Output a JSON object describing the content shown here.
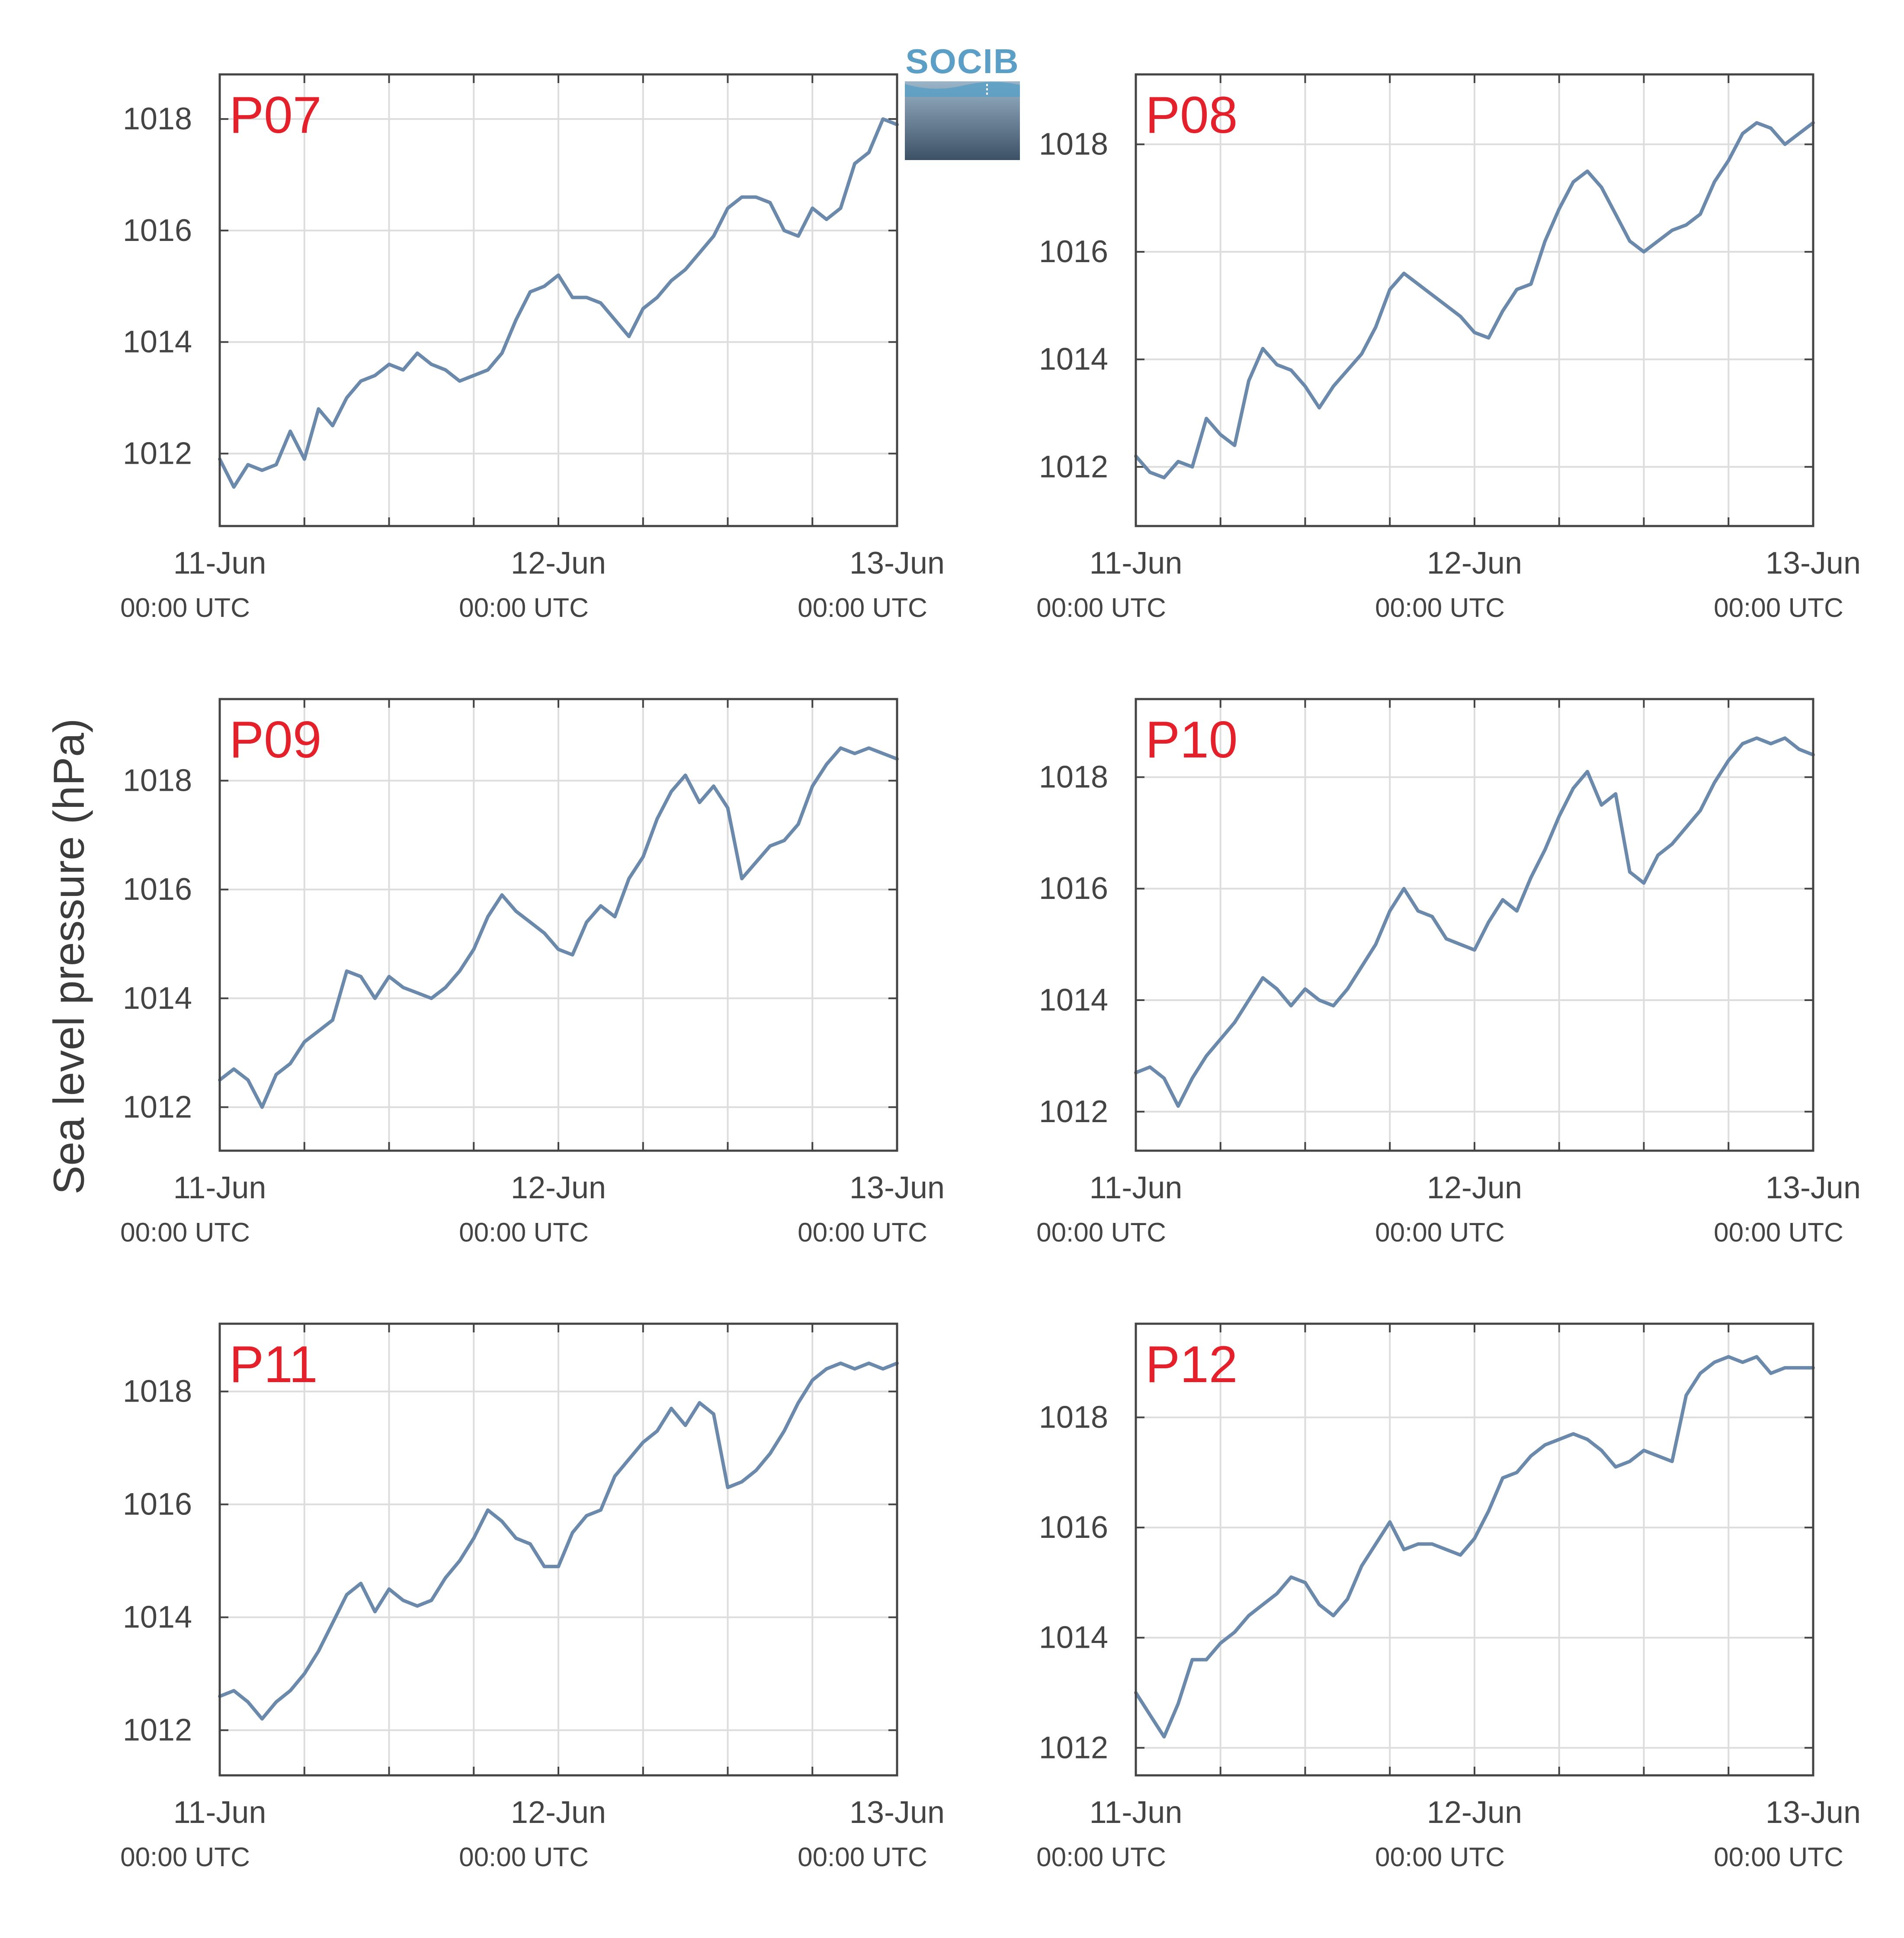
{
  "y_axis_label": "Sea level pressure (hPa)",
  "logo": {
    "text": "SOCIB"
  },
  "x_tick_labels": [
    {
      "date": "11-Jun",
      "time": "00:00 UTC"
    },
    {
      "date": "12-Jun",
      "time": "00:00 UTC"
    },
    {
      "date": "13-Jun",
      "time": "00:00 UTC"
    }
  ],
  "colors": {
    "line": "#6a89ab",
    "panel_label": "#e4202a",
    "grid": "#dddddd",
    "axis": "#444444",
    "text": "#444444"
  },
  "chart_data": [
    {
      "type": "line",
      "panel_label": "P07",
      "ylabel": "Sea level pressure (hPa)",
      "x_range": [
        "2024-06-11T00:00Z",
        "2024-06-13T00:00Z"
      ],
      "ylim": [
        1010.7,
        1018.8
      ],
      "y_ticks": [
        1012,
        1014,
        1016,
        1018
      ],
      "grid": true,
      "x_hours": [
        0,
        1,
        2,
        3,
        4,
        5,
        6,
        7,
        8,
        9,
        10,
        11,
        12,
        13,
        14,
        15,
        16,
        17,
        18,
        19,
        20,
        21,
        22,
        23,
        24,
        25,
        26,
        27,
        28,
        29,
        30,
        31,
        32,
        33,
        34,
        35,
        36,
        37,
        38,
        39,
        40,
        41,
        42,
        43,
        44,
        45,
        46,
        47,
        48
      ],
      "values": [
        1011.9,
        1011.4,
        1011.8,
        1011.7,
        1011.8,
        1012.4,
        1011.9,
        1012.8,
        1012.5,
        1013.0,
        1013.3,
        1013.4,
        1013.6,
        1013.5,
        1013.8,
        1013.6,
        1013.5,
        1013.3,
        1013.4,
        1013.5,
        1013.8,
        1014.4,
        1014.9,
        1015.0,
        1015.2,
        1014.8,
        1014.8,
        1014.7,
        1014.4,
        1014.1,
        1014.6,
        1014.8,
        1015.1,
        1015.3,
        1015.6,
        1015.9,
        1016.4,
        1016.6,
        1016.6,
        1016.5,
        1016.0,
        1015.9,
        1016.4,
        1016.2,
        1016.4,
        1017.2,
        1017.4,
        1018.0,
        1017.9
      ]
    },
    {
      "type": "line",
      "panel_label": "P08",
      "ylabel": "Sea level pressure (hPa)",
      "x_range": [
        "2024-06-11T00:00Z",
        "2024-06-13T00:00Z"
      ],
      "ylim": [
        1010.9,
        1019.3
      ],
      "y_ticks": [
        1012,
        1014,
        1016,
        1018
      ],
      "grid": true,
      "x_hours": [
        0,
        1,
        2,
        3,
        4,
        5,
        6,
        7,
        8,
        9,
        10,
        11,
        12,
        13,
        14,
        15,
        16,
        17,
        18,
        19,
        20,
        21,
        22,
        23,
        24,
        25,
        26,
        27,
        28,
        29,
        30,
        31,
        32,
        33,
        34,
        35,
        36,
        37,
        38,
        39,
        40,
        41,
        42,
        43,
        44,
        45,
        46,
        47,
        48
      ],
      "values": [
        1012.2,
        1011.9,
        1011.8,
        1012.1,
        1012.0,
        1012.9,
        1012.6,
        1012.4,
        1013.6,
        1014.2,
        1013.9,
        1013.8,
        1013.5,
        1013.1,
        1013.5,
        1013.8,
        1014.1,
        1014.6,
        1015.3,
        1015.6,
        1015.4,
        1015.2,
        1015.0,
        1014.8,
        1014.5,
        1014.4,
        1014.9,
        1015.3,
        1015.4,
        1016.2,
        1016.8,
        1017.3,
        1017.5,
        1017.2,
        1016.7,
        1016.2,
        1016.0,
        1016.2,
        1016.4,
        1016.5,
        1016.7,
        1017.3,
        1017.7,
        1018.2,
        1018.4,
        1018.3,
        1018.0,
        1018.2,
        1018.4
      ]
    },
    {
      "type": "line",
      "panel_label": "P09",
      "ylabel": "Sea level pressure (hPa)",
      "x_range": [
        "2024-06-11T00:00Z",
        "2024-06-13T00:00Z"
      ],
      "ylim": [
        1011.2,
        1019.5
      ],
      "y_ticks": [
        1012,
        1014,
        1016,
        1018
      ],
      "grid": true,
      "x_hours": [
        0,
        1,
        2,
        3,
        4,
        5,
        6,
        7,
        8,
        9,
        10,
        11,
        12,
        13,
        14,
        15,
        16,
        17,
        18,
        19,
        20,
        21,
        22,
        23,
        24,
        25,
        26,
        27,
        28,
        29,
        30,
        31,
        32,
        33,
        34,
        35,
        36,
        37,
        38,
        39,
        40,
        41,
        42,
        43,
        44,
        45,
        46,
        47,
        48
      ],
      "values": [
        1012.5,
        1012.7,
        1012.5,
        1012.0,
        1012.6,
        1012.8,
        1013.2,
        1013.4,
        1013.6,
        1014.5,
        1014.4,
        1014.0,
        1014.4,
        1014.2,
        1014.1,
        1014.0,
        1014.2,
        1014.5,
        1014.9,
        1015.5,
        1015.9,
        1015.6,
        1015.4,
        1015.2,
        1014.9,
        1014.8,
        1015.4,
        1015.7,
        1015.5,
        1016.2,
        1016.6,
        1017.3,
        1017.8,
        1018.1,
        1017.6,
        1017.9,
        1017.5,
        1016.2,
        1016.5,
        1016.8,
        1016.9,
        1017.2,
        1017.9,
        1018.3,
        1018.6,
        1018.5,
        1018.6,
        1018.5,
        1018.4
      ]
    },
    {
      "type": "line",
      "panel_label": "P10",
      "ylabel": "Sea level pressure (hPa)",
      "x_range": [
        "2024-06-11T00:00Z",
        "2024-06-13T00:00Z"
      ],
      "ylim": [
        1011.3,
        1019.4
      ],
      "y_ticks": [
        1012,
        1014,
        1016,
        1018
      ],
      "grid": true,
      "x_hours": [
        0,
        1,
        2,
        3,
        4,
        5,
        6,
        7,
        8,
        9,
        10,
        11,
        12,
        13,
        14,
        15,
        16,
        17,
        18,
        19,
        20,
        21,
        22,
        23,
        24,
        25,
        26,
        27,
        28,
        29,
        30,
        31,
        32,
        33,
        34,
        35,
        36,
        37,
        38,
        39,
        40,
        41,
        42,
        43,
        44,
        45,
        46,
        47,
        48
      ],
      "values": [
        1012.7,
        1012.8,
        1012.6,
        1012.1,
        1012.6,
        1013.0,
        1013.3,
        1013.6,
        1014.0,
        1014.4,
        1014.2,
        1013.9,
        1014.2,
        1014.0,
        1013.9,
        1014.2,
        1014.6,
        1015.0,
        1015.6,
        1016.0,
        1015.6,
        1015.5,
        1015.1,
        1015.0,
        1014.9,
        1015.4,
        1015.8,
        1015.6,
        1016.2,
        1016.7,
        1017.3,
        1017.8,
        1018.1,
        1017.5,
        1017.7,
        1016.3,
        1016.1,
        1016.6,
        1016.8,
        1017.1,
        1017.4,
        1017.9,
        1018.3,
        1018.6,
        1018.7,
        1018.6,
        1018.7,
        1018.5,
        1018.4
      ]
    },
    {
      "type": "line",
      "panel_label": "P11",
      "ylabel": "Sea level pressure (hPa)",
      "x_range": [
        "2024-06-11T00:00Z",
        "2024-06-13T00:00Z"
      ],
      "ylim": [
        1011.2,
        1019.2
      ],
      "y_ticks": [
        1012,
        1014,
        1016,
        1018
      ],
      "grid": true,
      "x_hours": [
        0,
        1,
        2,
        3,
        4,
        5,
        6,
        7,
        8,
        9,
        10,
        11,
        12,
        13,
        14,
        15,
        16,
        17,
        18,
        19,
        20,
        21,
        22,
        23,
        24,
        25,
        26,
        27,
        28,
        29,
        30,
        31,
        32,
        33,
        34,
        35,
        36,
        37,
        38,
        39,
        40,
        41,
        42,
        43,
        44,
        45,
        46,
        47,
        48
      ],
      "values": [
        1012.6,
        1012.7,
        1012.5,
        1012.2,
        1012.5,
        1012.7,
        1013.0,
        1013.4,
        1013.9,
        1014.4,
        1014.6,
        1014.1,
        1014.5,
        1014.3,
        1014.2,
        1014.3,
        1014.7,
        1015.0,
        1015.4,
        1015.9,
        1015.7,
        1015.4,
        1015.3,
        1014.9,
        1014.9,
        1015.5,
        1015.8,
        1015.9,
        1016.5,
        1016.8,
        1017.1,
        1017.3,
        1017.7,
        1017.4,
        1017.8,
        1017.6,
        1016.3,
        1016.4,
        1016.6,
        1016.9,
        1017.3,
        1017.8,
        1018.2,
        1018.4,
        1018.5,
        1018.4,
        1018.5,
        1018.4,
        1018.5
      ]
    },
    {
      "type": "line",
      "panel_label": "P12",
      "ylabel": "Sea level pressure (hPa)",
      "x_range": [
        "2024-06-11T00:00Z",
        "2024-06-13T00:00Z"
      ],
      "ylim": [
        1011.5,
        1019.7
      ],
      "y_ticks": [
        1012,
        1014,
        1016,
        1018
      ],
      "grid": true,
      "x_hours": [
        0,
        1,
        2,
        3,
        4,
        5,
        6,
        7,
        8,
        9,
        10,
        11,
        12,
        13,
        14,
        15,
        16,
        17,
        18,
        19,
        20,
        21,
        22,
        23,
        24,
        25,
        26,
        27,
        28,
        29,
        30,
        31,
        32,
        33,
        34,
        35,
        36,
        37,
        38,
        39,
        40,
        41,
        42,
        43,
        44,
        45,
        46,
        47,
        48
      ],
      "values": [
        1013.0,
        1012.6,
        1012.2,
        1012.8,
        1013.6,
        1013.6,
        1013.9,
        1014.1,
        1014.4,
        1014.6,
        1014.8,
        1015.1,
        1015.0,
        1014.6,
        1014.4,
        1014.7,
        1015.3,
        1015.7,
        1016.1,
        1015.6,
        1015.7,
        1015.7,
        1015.6,
        1015.5,
        1015.8,
        1016.3,
        1016.9,
        1017.0,
        1017.3,
        1017.5,
        1017.6,
        1017.7,
        1017.6,
        1017.4,
        1017.1,
        1017.2,
        1017.4,
        1017.3,
        1017.2,
        1018.4,
        1018.8,
        1019.0,
        1019.1,
        1019.0,
        1019.1,
        1018.8,
        1018.9,
        1018.9,
        1018.9
      ]
    }
  ]
}
